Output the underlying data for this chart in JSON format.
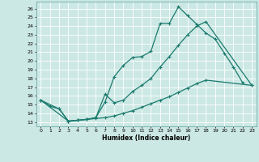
{
  "xlabel": "Humidex (Indice chaleur)",
  "bg_color": "#cce8e4",
  "line_color": "#1a7a6e",
  "grid_color": "#b0d0cc",
  "xlim": [
    -0.5,
    23.5
  ],
  "ylim": [
    12.5,
    26.8
  ],
  "xticks": [
    0,
    1,
    2,
    3,
    4,
    5,
    6,
    7,
    8,
    9,
    10,
    11,
    12,
    13,
    14,
    15,
    16,
    17,
    18,
    19,
    20,
    21,
    22,
    23
  ],
  "yticks": [
    13,
    14,
    15,
    16,
    17,
    18,
    19,
    20,
    21,
    22,
    23,
    24,
    25,
    26
  ],
  "line1_x": [
    0,
    1,
    2,
    3,
    4,
    5,
    6,
    7,
    8,
    9,
    10,
    11,
    12,
    13,
    14,
    15,
    16,
    17,
    18,
    19,
    20,
    21,
    22
  ],
  "line1_y": [
    15.5,
    14.8,
    14.5,
    13.1,
    13.2,
    13.3,
    13.5,
    15.3,
    18.2,
    19.5,
    20.4,
    20.5,
    21.1,
    24.3,
    24.3,
    26.2,
    25.2,
    24.2,
    23.2,
    22.5,
    20.9,
    19.3,
    17.5
  ],
  "line2_x": [
    0,
    2,
    3,
    4,
    5,
    6,
    7,
    8,
    9,
    10,
    11,
    12,
    13,
    14,
    15,
    16,
    17,
    18,
    23
  ],
  "line2_y": [
    15.5,
    14.5,
    13.1,
    13.2,
    13.3,
    13.5,
    16.2,
    15.2,
    15.5,
    16.5,
    17.2,
    18.0,
    19.3,
    20.5,
    21.8,
    23.0,
    24.0,
    24.5,
    17.2
  ],
  "line3_x": [
    0,
    3,
    4,
    5,
    6,
    7,
    8,
    9,
    10,
    11,
    12,
    13,
    14,
    15,
    16,
    17,
    18,
    23
  ],
  "line3_y": [
    15.5,
    13.1,
    13.2,
    13.3,
    13.4,
    13.5,
    13.7,
    14.0,
    14.3,
    14.7,
    15.1,
    15.5,
    15.9,
    16.4,
    16.9,
    17.4,
    17.8,
    17.2
  ]
}
